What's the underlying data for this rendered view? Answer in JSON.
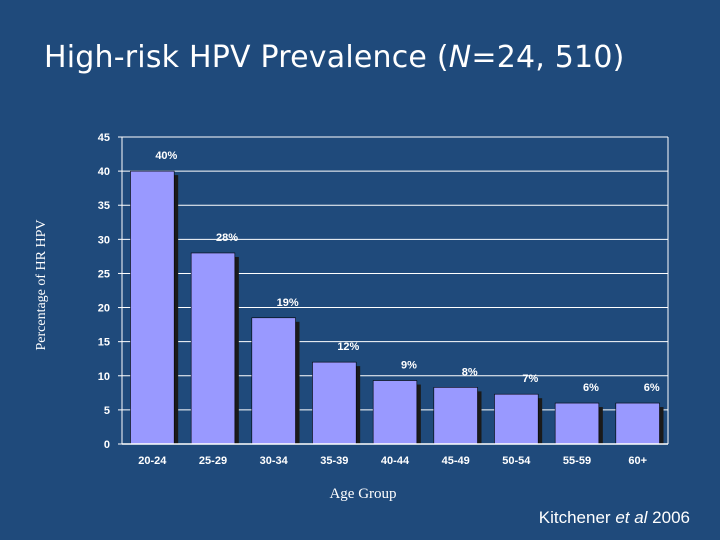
{
  "slide": {
    "title_prefix": "High-risk HPV Prevalence (",
    "title_n": "N",
    "title_suffix": "=24, 510)",
    "citation_author": "Kitchener ",
    "citation_etal": "et al",
    "citation_year": " 2006"
  },
  "colors": {
    "background": "#1F4A7B",
    "bar_fill": "#9999FF",
    "bar_shadow": "#1A1A1A",
    "grid": "#FFFFFF",
    "text": "#FFFFFF"
  },
  "chart_data": {
    "type": "bar",
    "title": "High-risk HPV Prevalence (N=24, 510)",
    "xlabel": "Age Group",
    "ylabel": "Percentage of HR HPV",
    "categories": [
      "20-24",
      "25-29",
      "30-34",
      "35-39",
      "40-44",
      "45-49",
      "50-54",
      "55-59",
      "60+"
    ],
    "values": [
      40,
      28,
      18.5,
      12,
      9.3,
      8.3,
      7.3,
      6,
      6
    ],
    "data_labels": [
      "40%",
      "28%",
      "19%",
      "12%",
      "9%",
      "8%",
      "7%",
      "6%",
      "6%"
    ],
    "ylim": [
      0,
      45
    ],
    "yticks": [
      0,
      5,
      10,
      15,
      20,
      25,
      30,
      35,
      40,
      45
    ],
    "grid": true,
    "legend": "none"
  }
}
